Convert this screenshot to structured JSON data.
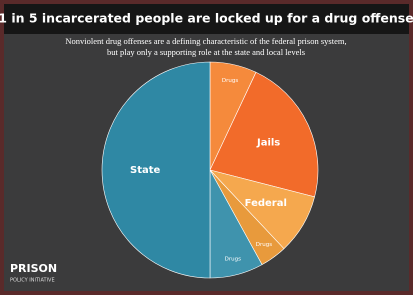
{
  "chart_data": {
    "type": "pie",
    "title": "1 in 5 incarcerated people are locked up for a drug offense",
    "subtitle": [
      "Nonviolent drug offenses are a defining characteristic of the federal prison system,",
      "but play only a supporting role at the state and local levels"
    ],
    "categories": [
      "Drugs",
      "Jails",
      "Federal",
      "Drugs",
      "Drugs",
      "State"
    ],
    "values": [
      7,
      22,
      9,
      4,
      8,
      50
    ],
    "colors": [
      "#f58a3c",
      "#f26b2a",
      "#f5a84e",
      "#e89a3c",
      "#3f93ad",
      "#2f88a4"
    ]
  },
  "logo": {
    "name": "PRISON",
    "tagline": "POLICY INITIATIVE"
  }
}
